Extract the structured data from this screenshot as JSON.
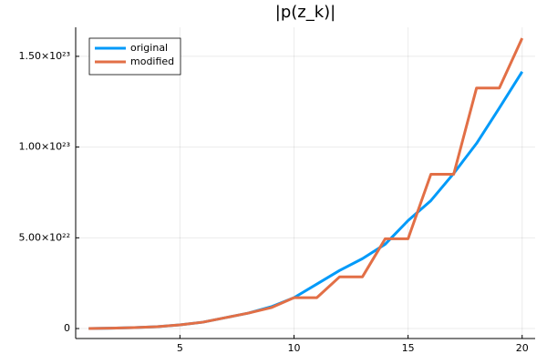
{
  "chart_data": {
    "type": "line",
    "title": "|p(z_k)|",
    "x": [
      1,
      2,
      3,
      4,
      5,
      6,
      7,
      8,
      9,
      10,
      11,
      12,
      13,
      14,
      15,
      16,
      17,
      18,
      19,
      20
    ],
    "series": [
      {
        "name": "original",
        "color": "#009af9",
        "values": [
          0,
          2e+20,
          5e+20,
          1e+21,
          2e+21,
          3.5e+21,
          6e+21,
          8.5e+21,
          1.2e+22,
          1.7e+22,
          2.45e+22,
          3.2e+22,
          3.85e+22,
          4.65e+22,
          5.95e+22,
          7.05e+22,
          8.55e+22,
          1.02e+23,
          1.215e+23,
          1.415e+23
        ]
      },
      {
        "name": "modified",
        "color": "#e26f46",
        "values": [
          0,
          2e+20,
          5e+20,
          1e+21,
          2e+21,
          3.5e+21,
          6e+21,
          8.5e+21,
          1.15e+22,
          1.7e+22,
          1.7e+22,
          2.85e+22,
          2.85e+22,
          4.95e+22,
          4.95e+22,
          8.5e+22,
          8.5e+22,
          1.325e+23,
          1.325e+23,
          1.6e+23
        ]
      }
    ],
    "xlim": [
      0.43,
      20.57
    ],
    "xticks": [
      5,
      10,
      15,
      20
    ],
    "ylim": [
      -5.5e+21,
      1.66e+23
    ],
    "yticks": [
      0,
      {
        "value": 5e+22,
        "label": "5.00×10²²"
      },
      {
        "value": 1e+23,
        "label": "1.00×10²³"
      },
      {
        "value": 1.5e+23,
        "label": "1.50×10²³"
      }
    ],
    "grid": true,
    "legend": "top-left"
  }
}
